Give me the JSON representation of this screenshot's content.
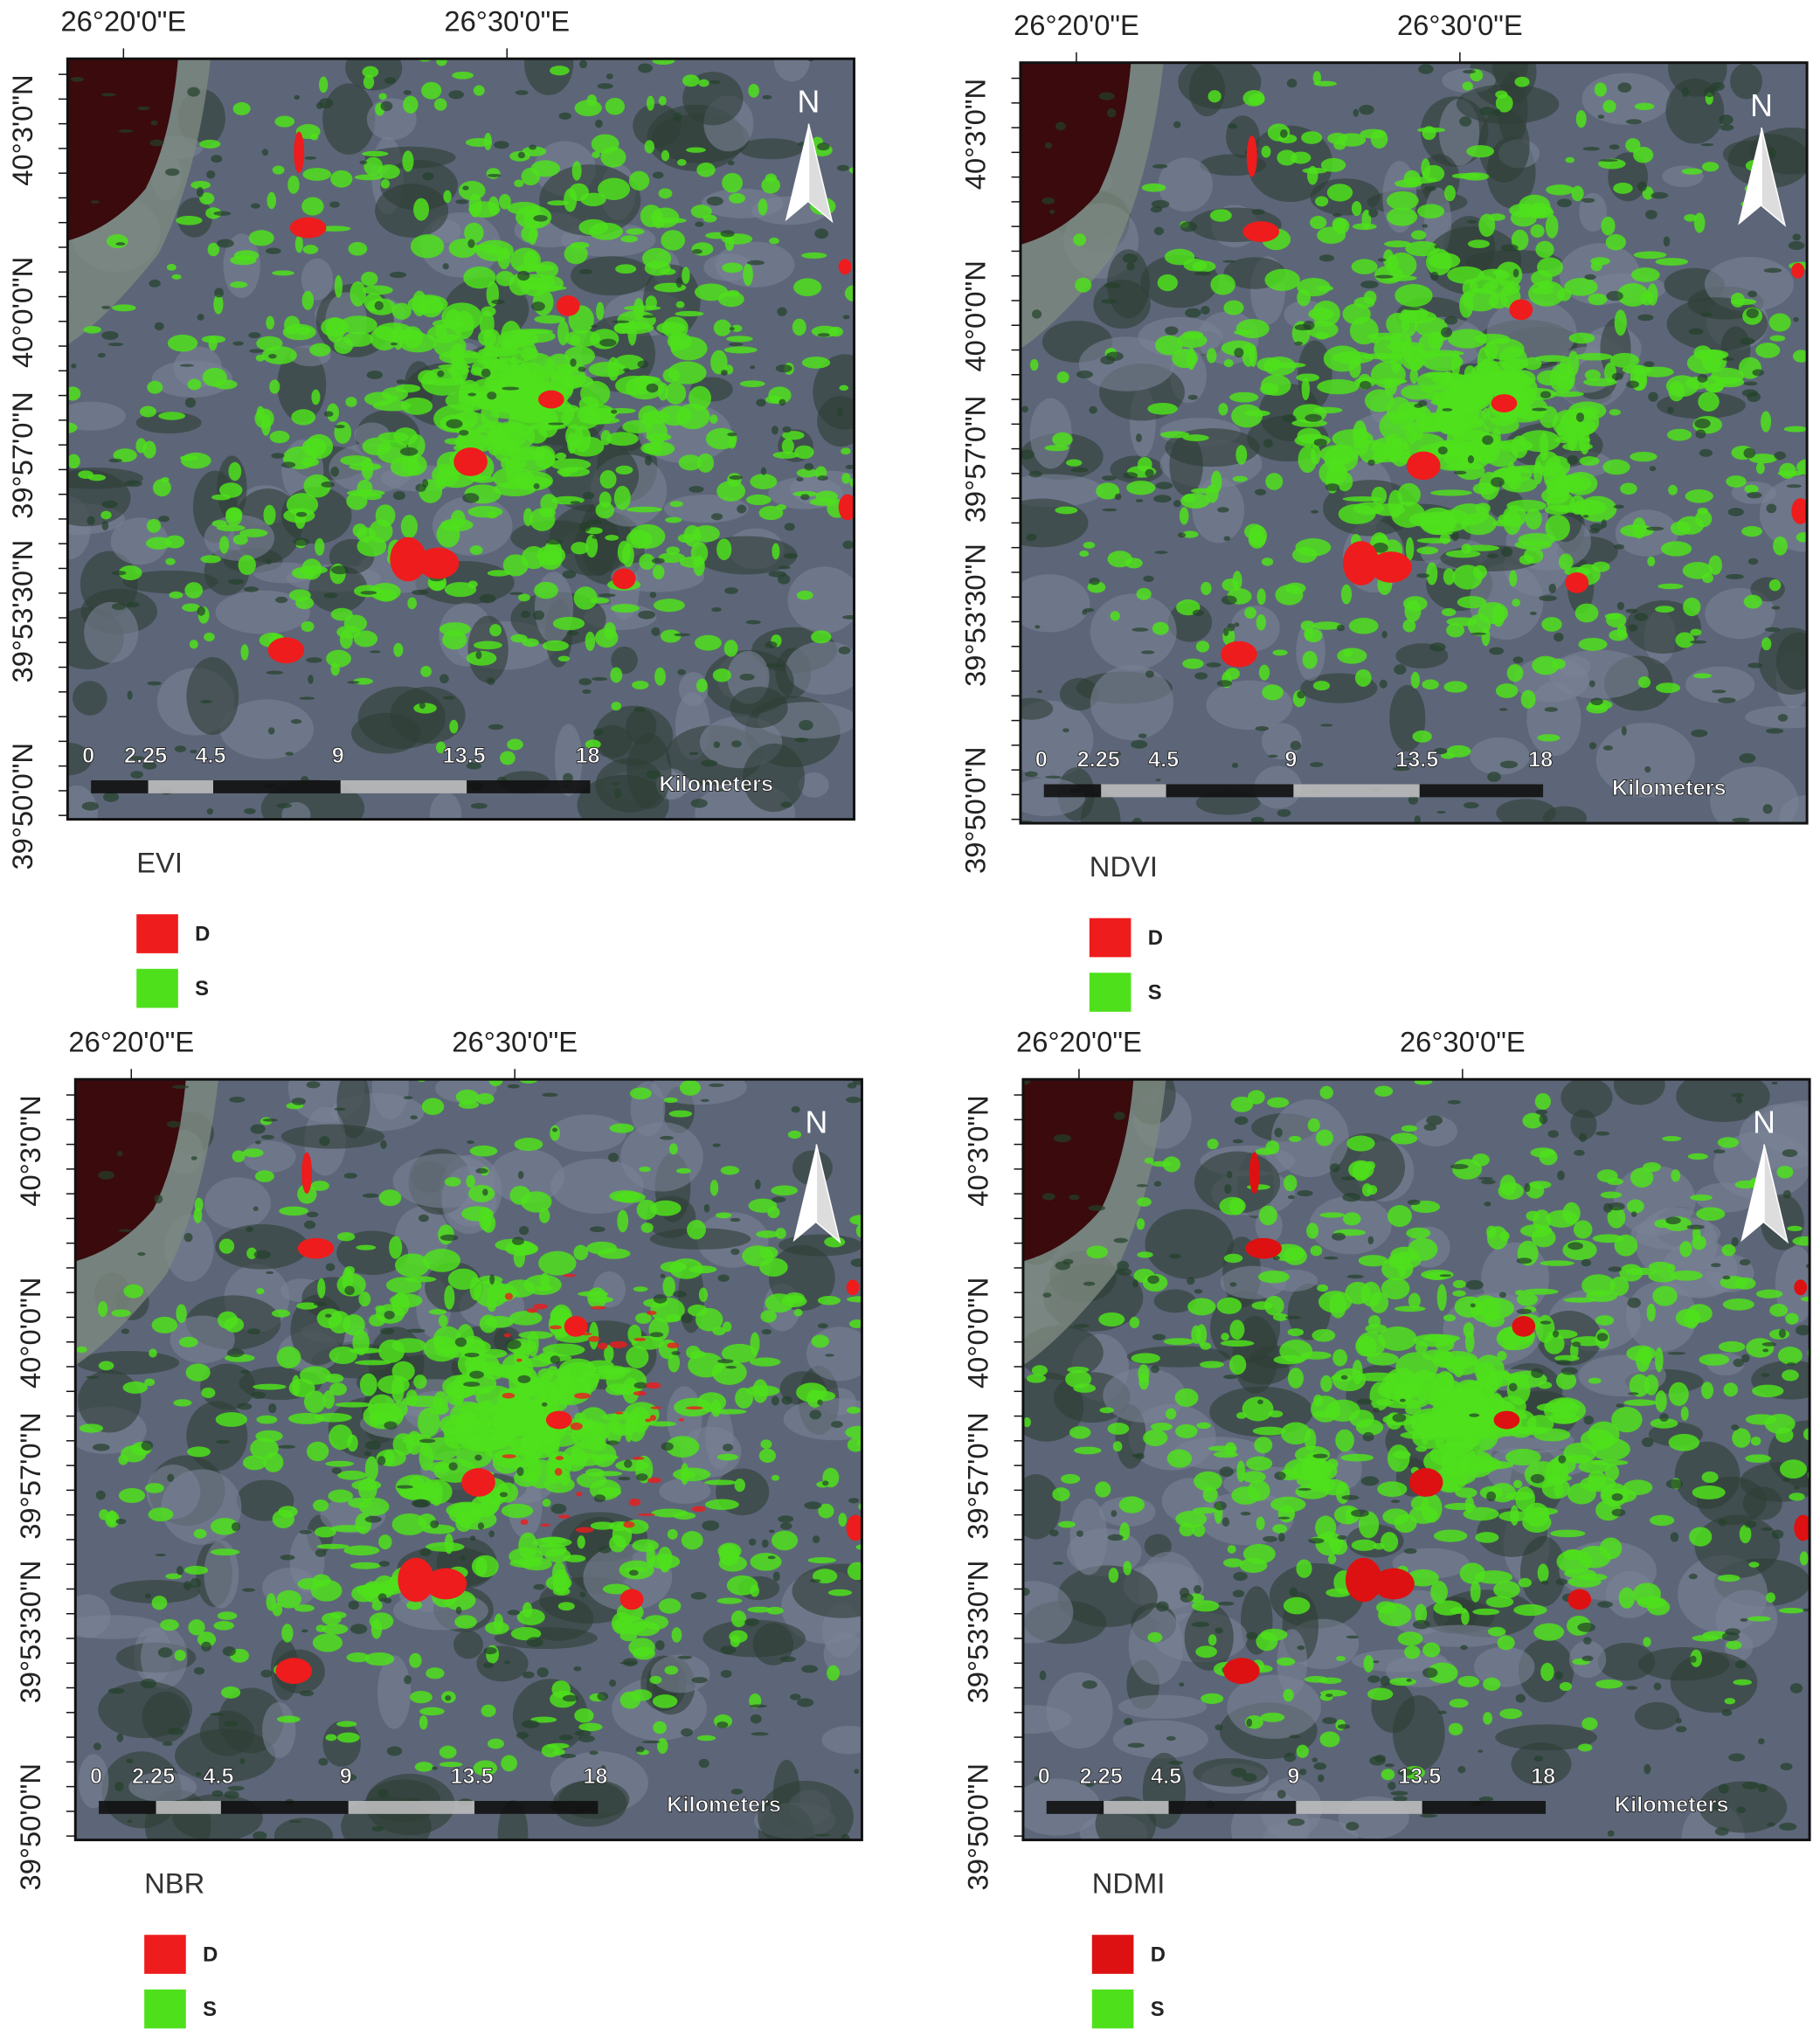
{
  "panels": [
    {
      "title": "EVI",
      "lon_labels": [
        "26°20'0\"E",
        "26°30'0\"E"
      ],
      "lat_labels": [
        "40°3'0\"N",
        "40°0'0\"N",
        "39°57'0\"N",
        "39°53'30\"N",
        "39°50'0\"N"
      ],
      "north": "N",
      "scale_labels": [
        "0",
        "2.25",
        "4.5",
        "9",
        "13.5",
        "18"
      ],
      "scale_unit": "Kilometers",
      "legend": [
        {
          "label": "D",
          "color": "#ee1c1c"
        },
        {
          "label": "S",
          "color": "#4fe01c"
        }
      ]
    },
    {
      "title": "NDVI",
      "lon_labels": [
        "26°20'0\"E",
        "26°30'0\"E"
      ],
      "lat_labels": [
        "40°3'0\"N",
        "40°0'0\"N",
        "39°57'0\"N",
        "39°53'30\"N",
        "39°50'0\"N"
      ],
      "north": "N",
      "scale_labels": [
        "0",
        "2.25",
        "4.5",
        "9",
        "13.5",
        "18"
      ],
      "scale_unit": "Kilometers",
      "legend": [
        {
          "label": "D",
          "color": "#ee1c1c"
        },
        {
          "label": "S",
          "color": "#4fe01c"
        }
      ]
    },
    {
      "title": "NBR",
      "lon_labels": [
        "26°20'0\"E",
        "26°30'0\"E"
      ],
      "lat_labels": [
        "40°3'0\"N",
        "40°0'0\"N",
        "39°57'0\"N",
        "39°53'30\"N",
        "39°50'0\"N"
      ],
      "north": "N",
      "scale_labels": [
        "0",
        "2.25",
        "4.5",
        "9",
        "13.5",
        "18"
      ],
      "scale_unit": "Kilometers",
      "legend": [
        {
          "label": "D",
          "color": "#ee1c1c"
        },
        {
          "label": "S",
          "color": "#4fe01c"
        }
      ]
    },
    {
      "title": "NDMI",
      "lon_labels": [
        "26°20'0\"E",
        "26°30'0\"E"
      ],
      "lat_labels": [
        "40°3'0\"N",
        "40°0'0\"N",
        "39°57'0\"N",
        "39°53'30\"N",
        "39°50'0\"N"
      ],
      "north": "N",
      "scale_labels": [
        "0",
        "2.25",
        "4.5",
        "9",
        "13.5",
        "18"
      ],
      "scale_unit": "Kilometers",
      "legend": [
        {
          "label": "D",
          "color": "#dd1111"
        },
        {
          "label": "S",
          "color": "#4fe01c"
        }
      ]
    }
  ]
}
